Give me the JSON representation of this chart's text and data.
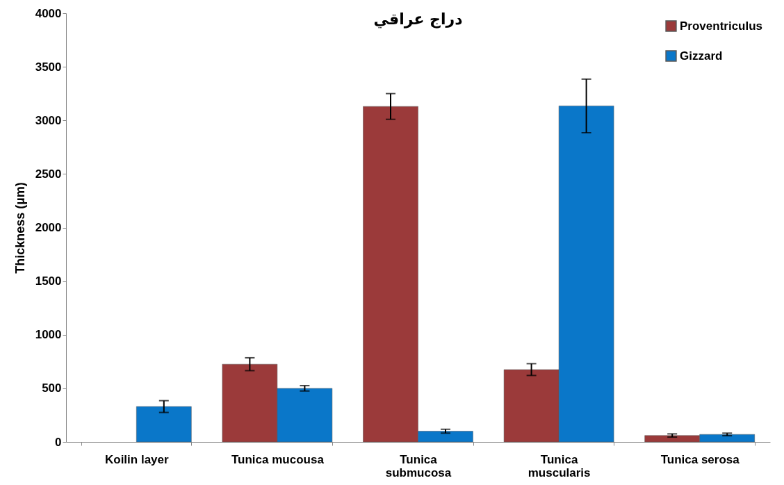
{
  "chart_data": {
    "type": "bar",
    "title": "دراج عراقي",
    "ylabel": "Thickness (µm)",
    "categories": [
      "Koilin layer",
      "Tunica mucousa",
      "Tunica submucosa",
      "Tunica muscularis",
      "Tunica serosa"
    ],
    "series": [
      {
        "name": "Proventriculus",
        "color": "#9b3a3a",
        "values": [
          null,
          725,
          3130,
          675,
          60
        ],
        "errors": [
          null,
          60,
          120,
          55,
          15
        ]
      },
      {
        "name": "Gizzard",
        "color": "#0a77c9",
        "values": [
          330,
          500,
          100,
          3135,
          70
        ],
        "errors": [
          55,
          25,
          18,
          250,
          12
        ]
      }
    ],
    "ylim": [
      0,
      4000
    ],
    "yticks": [
      0,
      500,
      1000,
      1500,
      2000,
      2500,
      3000,
      3500,
      4000
    ],
    "grid": false,
    "legend": "top right"
  }
}
